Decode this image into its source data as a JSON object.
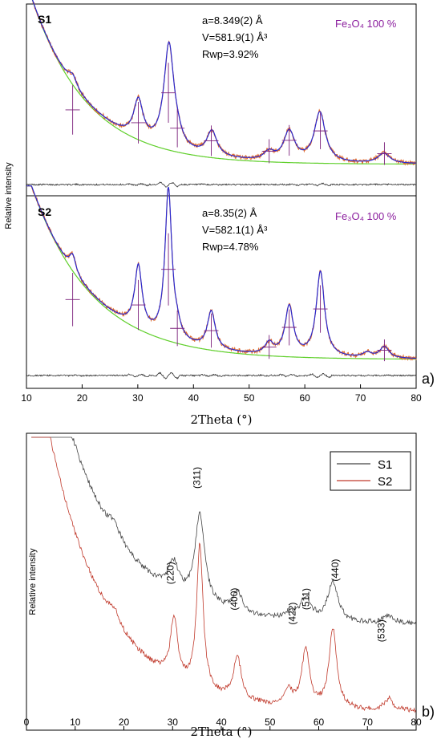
{
  "figure": {
    "panel_a_label": "a)",
    "panel_b_label": "b)"
  },
  "chart_data": [
    {
      "type": "line",
      "panel": "a",
      "xlabel": "2Theta (°)",
      "ylabel": "Relative intensity",
      "xlim": [
        10,
        80
      ],
      "xticks": [
        10,
        20,
        30,
        40,
        50,
        60,
        70,
        80
      ],
      "colors": {
        "observed": "#e06a2c",
        "calculated": "#2a2ad0",
        "background": "#5fcf2a",
        "difference": "#333333",
        "bragg": "#7a1f7a",
        "phase_label": "#8b1e9e"
      },
      "subplots": [
        {
          "sample": "S1",
          "params": [
            "a=8.349(2) Å",
            "V=581.9(1) Å³",
            "Rwp=3.92%"
          ],
          "phase": "Fe₃O₄ 100 %",
          "ylim": [
            0,
            100
          ],
          "background": {
            "A": 110,
            "tau": 10,
            "C": 5
          },
          "peaks": [
            {
              "x": 18.3,
              "h": 6,
              "w": 0.9
            },
            {
              "x": 30.1,
              "h": 23,
              "w": 1.0
            },
            {
              "x": 35.6,
              "h": 63,
              "w": 1.1
            },
            {
              "x": 37.2,
              "h": 4,
              "w": 0.9
            },
            {
              "x": 43.3,
              "h": 15,
              "w": 1.1
            },
            {
              "x": 53.6,
              "h": 5,
              "w": 1.1
            },
            {
              "x": 57.2,
              "h": 18,
              "w": 1.2
            },
            {
              "x": 62.7,
              "h": 30,
              "w": 1.2
            },
            {
              "x": 74.2,
              "h": 6,
              "w": 1.3
            }
          ],
          "diff_offset": -8
        },
        {
          "sample": "S2",
          "params": [
            "a=8.35(2) Å",
            "V=582.1(1) Å³",
            "Rwp=4.78%"
          ],
          "phase": "Fe₃O₄ 100 %",
          "ylim": [
            0,
            100
          ],
          "background": {
            "A": 115,
            "tau": 11,
            "C": 2
          },
          "peaks": [
            {
              "x": 18.3,
              "h": 10,
              "w": 0.7
            },
            {
              "x": 30.1,
              "h": 38,
              "w": 0.8
            },
            {
              "x": 35.5,
              "h": 92,
              "w": 0.75
            },
            {
              "x": 37.1,
              "h": 5,
              "w": 0.7
            },
            {
              "x": 43.2,
              "h": 23,
              "w": 0.85
            },
            {
              "x": 53.6,
              "h": 7,
              "w": 0.9
            },
            {
              "x": 57.2,
              "h": 30,
              "w": 0.9
            },
            {
              "x": 62.8,
              "h": 52,
              "w": 0.9
            },
            {
              "x": 71.2,
              "h": 3,
              "w": 1.0
            },
            {
              "x": 74.3,
              "h": 7,
              "w": 1.0
            }
          ],
          "diff_offset": -8
        }
      ],
      "bragg_positions": [
        18.3,
        30.1,
        35.5,
        37.1,
        43.2,
        53.6,
        57.2,
        62.8,
        74.3
      ]
    },
    {
      "type": "line",
      "panel": "b",
      "xlabel": "2Theta (°)",
      "ylabel": "Relative intensity",
      "xlim": [
        0,
        80
      ],
      "ylim": [
        0,
        100
      ],
      "xticks": [
        0,
        10,
        20,
        30,
        40,
        50,
        60,
        70,
        80
      ],
      "legend": "top-right",
      "series": [
        {
          "name": "S1",
          "color": "#444444",
          "background": {
            "A": 62,
            "tau": 12,
            "C": 35
          },
          "peaks": [
            {
              "x": 18.0,
              "h": 4,
              "w": 1.5
            },
            {
              "x": 30.2,
              "h": 10,
              "w": 1.2
            },
            {
              "x": 35.6,
              "h": 31,
              "w": 1.2
            },
            {
              "x": 43.3,
              "h": 7,
              "w": 1.3
            },
            {
              "x": 53.8,
              "h": 2,
              "w": 1.3
            },
            {
              "x": 57.3,
              "h": 8,
              "w": 1.3
            },
            {
              "x": 62.9,
              "h": 14,
              "w": 1.3
            },
            {
              "x": 74.4,
              "h": 3,
              "w": 1.4
            }
          ]
        },
        {
          "name": "S2",
          "color": "#c0392b",
          "background": {
            "A": 62,
            "tau": 12,
            "C": 5
          },
          "peaks": [
            {
              "x": 18.0,
              "h": 4,
              "w": 1.4
            },
            {
              "x": 30.3,
              "h": 21,
              "w": 0.9
            },
            {
              "x": 35.6,
              "h": 50,
              "w": 0.8
            },
            {
              "x": 43.3,
              "h": 15,
              "w": 0.95
            },
            {
              "x": 53.8,
              "h": 5,
              "w": 1.0
            },
            {
              "x": 57.3,
              "h": 20,
              "w": 0.95
            },
            {
              "x": 62.9,
              "h": 28,
              "w": 0.95
            },
            {
              "x": 74.4,
              "h": 4,
              "w": 1.1
            }
          ]
        }
      ],
      "peak_labels": [
        {
          "x": 30.2,
          "label": "(220)",
          "y": 53
        },
        {
          "x": 35.6,
          "label": "(311)",
          "y": 86
        },
        {
          "x": 43.3,
          "label": "(400)",
          "y": 44
        },
        {
          "x": 55.2,
          "label": "(422)",
          "y": 39
        },
        {
          "x": 58.0,
          "label": "(511)",
          "y": 44
        },
        {
          "x": 64.0,
          "label": "(440)",
          "y": 54
        },
        {
          "x": 73.5,
          "label": "(533)",
          "y": 33
        }
      ]
    }
  ]
}
